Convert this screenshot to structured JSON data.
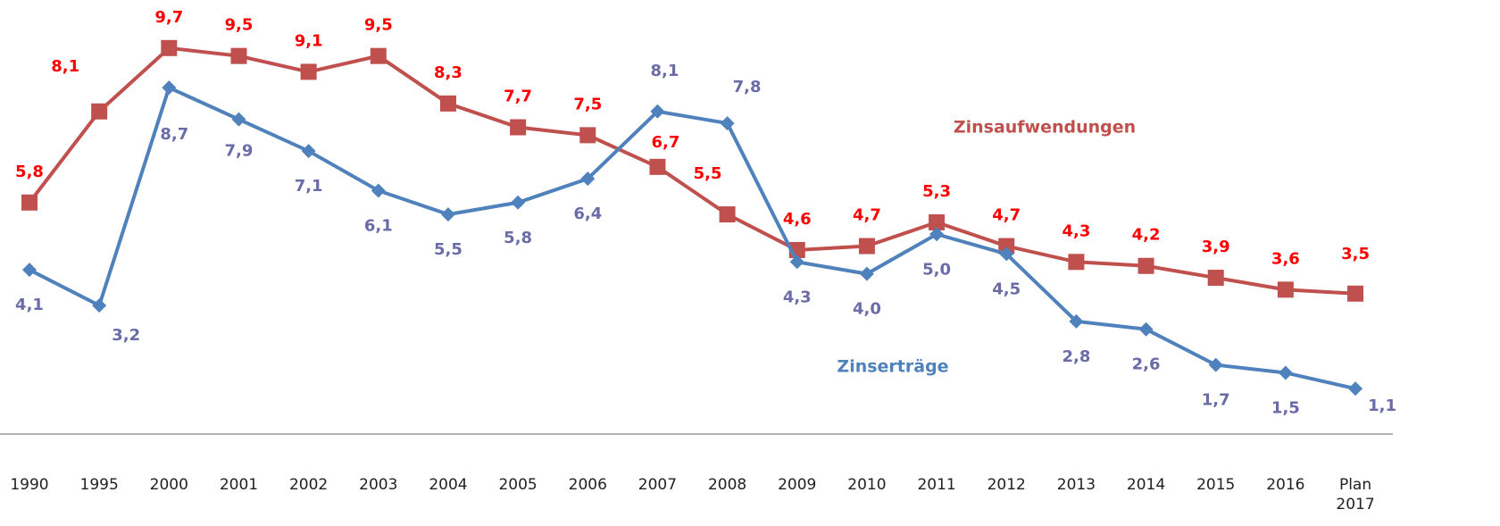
{
  "chart_data": {
    "type": "line",
    "categories": [
      "1990",
      "1995",
      "2000",
      "2001",
      "2002",
      "2003",
      "2004",
      "2005",
      "2006",
      "2007",
      "2008",
      "2009",
      "2010",
      "2011",
      "2012",
      "2013",
      "2014",
      "2015",
      "2016",
      "Plan 2017"
    ],
    "series": [
      {
        "name": "Zinsaufwendungen",
        "color": "#c0504d",
        "values": [
          5.8,
          8.1,
          9.7,
          9.5,
          9.1,
          9.5,
          8.3,
          7.7,
          7.5,
          6.7,
          5.5,
          4.6,
          4.7,
          5.3,
          4.7,
          4.3,
          4.2,
          3.9,
          3.6,
          3.5
        ],
        "value_labels": [
          "5,8",
          "8,1",
          "9,7",
          "9,5",
          "9,1",
          "9,5",
          "8,3",
          "7,7",
          "7,5",
          "6,7",
          "5,5",
          "4,6",
          "4,7",
          "5,3",
          "4,7",
          "4,3",
          "4,2",
          "3,9",
          "3,6",
          "3,5"
        ]
      },
      {
        "name": "Zinserträge",
        "color": "#4f81bd",
        "values": [
          4.1,
          3.2,
          8.7,
          7.9,
          7.1,
          6.1,
          5.5,
          5.8,
          6.4,
          8.1,
          7.8,
          4.3,
          4.0,
          5.0,
          4.5,
          2.8,
          2.6,
          1.7,
          1.5,
          1.1
        ],
        "value_labels": [
          "4,1",
          "3,2",
          "8,7",
          "7,9",
          "7,1",
          "6,1",
          "5,5",
          "5,8",
          "6,4",
          "8,1",
          "7,8",
          "4,3",
          "4,0",
          "5,0",
          "4,5",
          "2,8",
          "2,6",
          "1,7",
          "1,5",
          "1,1"
        ]
      }
    ]
  }
}
